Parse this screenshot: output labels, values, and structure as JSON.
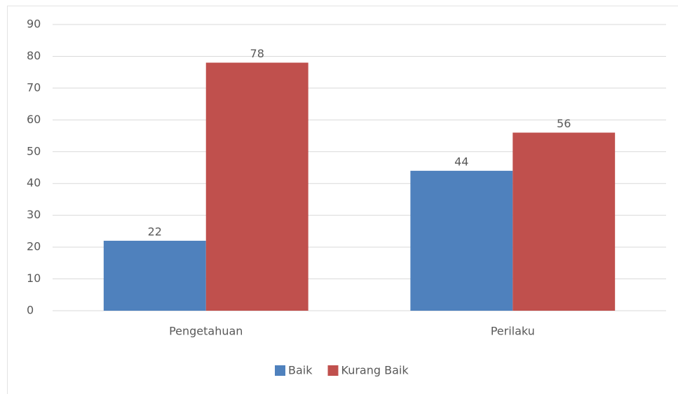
{
  "chart_data": {
    "type": "bar",
    "categories": [
      "Pengetahuan",
      "Perilaku"
    ],
    "series": [
      {
        "name": "Baik",
        "color": "#4f81bd",
        "values": [
          22,
          44
        ]
      },
      {
        "name": "Kurang Baik",
        "color": "#c0504d",
        "values": [
          78,
          56
        ]
      }
    ],
    "ylim": [
      0,
      90
    ],
    "yticks": [
      0,
      10,
      20,
      30,
      40,
      50,
      60,
      70,
      80,
      90
    ],
    "grid": true,
    "data_labels": true,
    "legend": "bottom"
  }
}
